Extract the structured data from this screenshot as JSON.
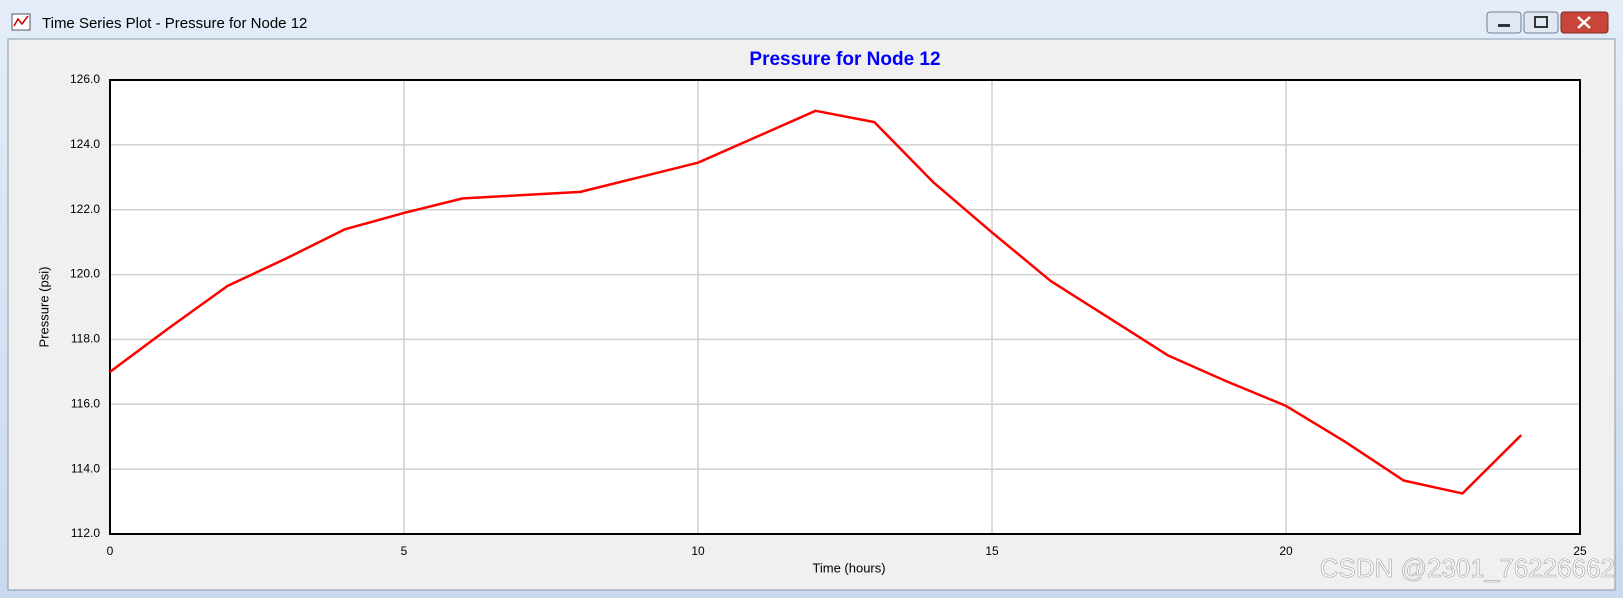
{
  "window": {
    "title": "Time Series Plot - Pressure for Node 12"
  },
  "chart_data": {
    "type": "line",
    "title": "Pressure for Node 12",
    "x_label": "Time (hours)",
    "y_label": "Pressure (psi)",
    "x": [
      0,
      1,
      2,
      3,
      4,
      5,
      6,
      7,
      8,
      9,
      10,
      11,
      12,
      13,
      14,
      15,
      16,
      17,
      18,
      19,
      20,
      21,
      22,
      23,
      24
    ],
    "series": [
      {
        "name": "Pressure for Node 12",
        "color": "#ff0000",
        "values": [
          117.0,
          118.35,
          119.65,
          120.5,
          121.4,
          121.9,
          122.35,
          122.45,
          122.55,
          123.0,
          123.45,
          124.25,
          125.05,
          124.7,
          122.85,
          121.3,
          119.8,
          118.65,
          117.5,
          116.7,
          115.95,
          114.85,
          113.65,
          113.25,
          115.05
        ]
      }
    ],
    "xlim": [
      0,
      25
    ],
    "xticks": [
      0,
      5,
      10,
      15,
      20,
      25
    ],
    "ylim": [
      112,
      126
    ],
    "yticks": [
      {
        "value": 112,
        "label": "112.0"
      },
      {
        "value": 114,
        "label": "114.0"
      },
      {
        "value": 116,
        "label": "116.0"
      },
      {
        "value": 118,
        "label": "118.0"
      },
      {
        "value": 120,
        "label": "120.0"
      },
      {
        "value": 122,
        "label": "122.0"
      },
      {
        "value": 124,
        "label": "124.0"
      },
      {
        "value": 126,
        "label": "126.0"
      }
    ],
    "grid": true
  },
  "watermark": "CSDN @2301_76226662"
}
